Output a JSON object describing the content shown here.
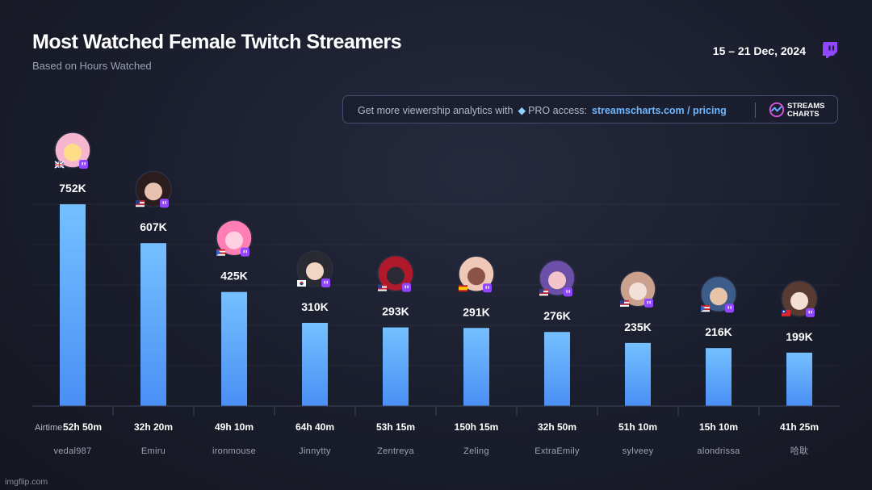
{
  "header": {
    "title": "Most Watched Female Twitch Streamers",
    "subtitle": "Based on Hours Watched",
    "date_range": "15 – 21 Dec, 2024"
  },
  "promo": {
    "text": "Get more viewership analytics with",
    "pro": "PRO access:",
    "link": "streamscharts.com / pricing",
    "brand_line1": "STREAMS",
    "brand_line2": "CHARTS"
  },
  "airtime_label": "Airtime:",
  "watermark": "imgflip.com",
  "colors": {
    "bar_top": "#74c0ff",
    "bar_bottom": "#4a8ff5",
    "twitch": "#9146ff"
  },
  "chart_data": {
    "type": "bar",
    "title": "Most Watched Female Twitch Streamers",
    "subtitle": "Based on Hours Watched",
    "categories": [
      "vedal987",
      "Emiru",
      "ironmouse",
      "Jinnytty",
      "Zentreya",
      "Zeling",
      "ExtraEmily",
      "sylveey",
      "alondrissa",
      "哈耿"
    ],
    "values": [
      752000,
      607000,
      425000,
      310000,
      293000,
      291000,
      276000,
      235000,
      216000,
      199000
    ],
    "value_labels": [
      "752K",
      "607K",
      "425K",
      "310K",
      "293K",
      "291K",
      "276K",
      "235K",
      "216K",
      "199K"
    ],
    "airtime": [
      "52h 50m",
      "32h 20m",
      "49h 10m",
      "64h 40m",
      "53h 15m",
      "150h 15m",
      "32h 50m",
      "51h 10m",
      "15h 10m",
      "41h 25m"
    ],
    "flags": [
      "uk",
      "us",
      "pr",
      "kr",
      "us",
      "es",
      "us",
      "us",
      "pr",
      "tw"
    ],
    "ylim": [
      0,
      752000
    ],
    "grid": true,
    "legend": "none"
  }
}
